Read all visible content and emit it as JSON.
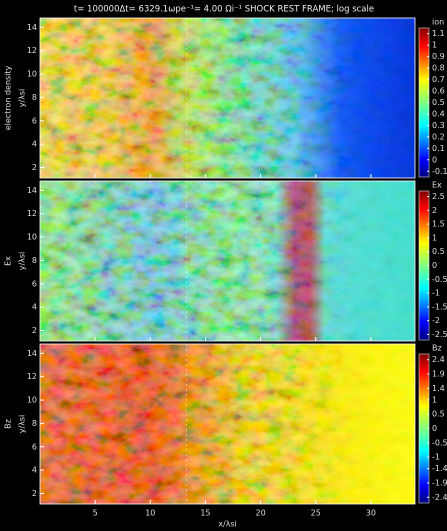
{
  "title": "t= 100000Δt= 6329.1ωpe⁻¹= 4.00 Ωi⁻¹    SHOCK REST FRAME; log scale",
  "chart_data": [
    {
      "type": "heatmap",
      "panel_label": "electron density",
      "ylabel": "y/λsi",
      "colormap": "jet",
      "xlim": [
        0,
        34
      ],
      "xticks": [
        5,
        10,
        15,
        20,
        25,
        30
      ],
      "ylim": [
        1.1,
        14.8
      ],
      "yticks": [
        2,
        4,
        6,
        8,
        10,
        12,
        14
      ],
      "colorbar": {
        "label": "ion",
        "lim": [
          -0.15,
          1.15
        ],
        "ticks": [
          1.1,
          1,
          0.9,
          0.8,
          0.7,
          0.6,
          0.5,
          0.4,
          0.3,
          0.2,
          0.1,
          0,
          -0.1
        ]
      }
    },
    {
      "type": "heatmap",
      "panel_label": "Ex",
      "ylabel": "y/λsi",
      "colormap": "jet",
      "xlim": [
        0,
        34
      ],
      "xticks": [
        5,
        10,
        15,
        20,
        25,
        30
      ],
      "ylim": [
        1.1,
        14.8
      ],
      "yticks": [
        2,
        4,
        6,
        8,
        10,
        12,
        14
      ],
      "colorbar": {
        "label": "Ex",
        "lim": [
          -2.7,
          2.7
        ],
        "ticks": [
          2.5,
          2,
          1.5,
          1,
          0.5,
          0,
          -0.5,
          -1,
          -1.5,
          -2,
          -2.5
        ]
      }
    },
    {
      "type": "heatmap",
      "panel_label": "Bz",
      "ylabel": "y/λsi",
      "xlabel": "x/λsi",
      "colormap": "jet",
      "xlim": [
        0,
        34
      ],
      "xticks": [
        5,
        10,
        15,
        20,
        25,
        30
      ],
      "ylim": [
        1.1,
        14.8
      ],
      "yticks": [
        2,
        4,
        6,
        8,
        10,
        12,
        14
      ],
      "colorbar": {
        "label": "Bz",
        "lim": [
          -2.6,
          2.6
        ],
        "ticks": [
          2.4,
          1.9,
          1.4,
          1,
          0.5,
          0,
          -0.5,
          -1,
          -1.4,
          -1.9,
          -2.4
        ]
      }
    }
  ]
}
